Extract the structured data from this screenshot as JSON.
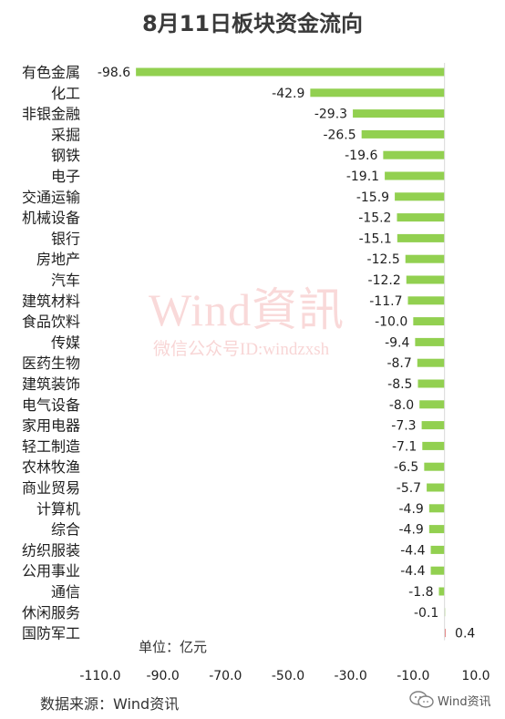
{
  "page": {
    "title": "8月11日板块资金流向",
    "watermark": "Wind資訊",
    "watermark_sub": "微信公众号ID:windzxsh",
    "unit_label": "单位：亿元",
    "source": "数据来源：Wind资讯",
    "brand": "Wind资讯",
    "brand_icon": "wechat-icon"
  },
  "chart_data": {
    "type": "bar",
    "orientation": "horizontal",
    "title": "8月11日板块资金流向",
    "categories": [
      "有色金属",
      "化工",
      "非银金融",
      "采掘",
      "钢铁",
      "电子",
      "交通运输",
      "机械设备",
      "银行",
      "房地产",
      "汽车",
      "建筑材料",
      "食品饮料",
      "传媒",
      "医药生物",
      "建筑装饰",
      "电气设备",
      "家用电器",
      "轻工制造",
      "农林牧渔",
      "商业贸易",
      "计算机",
      "综合",
      "纺织服装",
      "公用事业",
      "通信",
      "休闲服务",
      "国防军工"
    ],
    "values": [
      -98.6,
      -42.9,
      -29.3,
      -26.5,
      -19.6,
      -19.1,
      -15.9,
      -15.2,
      -15.1,
      -12.5,
      -12.2,
      -11.7,
      -10.0,
      -9.4,
      -8.7,
      -8.5,
      -8.0,
      -7.3,
      -7.1,
      -6.5,
      -5.7,
      -4.9,
      -4.9,
      -4.4,
      -4.4,
      -1.8,
      -0.1,
      0.4
    ],
    "value_labels": [
      "-98.6",
      "-42.9",
      "-29.3",
      "-26.5",
      "-19.6",
      "-19.1",
      "-15.9",
      "-15.2",
      "-15.1",
      "-12.5",
      "-12.2",
      "-11.7",
      "-10.0",
      "-9.4",
      "-8.7",
      "-8.5",
      "-8.0",
      "-7.3",
      "-7.1",
      "-6.5",
      "-5.7",
      "-4.9",
      "-4.9",
      "-4.4",
      "-4.4",
      "-1.8",
      "-0.1",
      "0.4"
    ],
    "xlim": [
      -110,
      10
    ],
    "xticks": [
      -110,
      -90,
      -70,
      -50,
      -30,
      -10,
      10
    ],
    "xtick_labels": [
      "-110.0",
      "-90.0",
      "-70.0",
      "-50.0",
      "-30.0",
      "-10.0",
      "10.0"
    ],
    "colors": {
      "negative": "#92d050",
      "positive": "#e87d7d"
    },
    "grid": false,
    "legend": "none"
  }
}
